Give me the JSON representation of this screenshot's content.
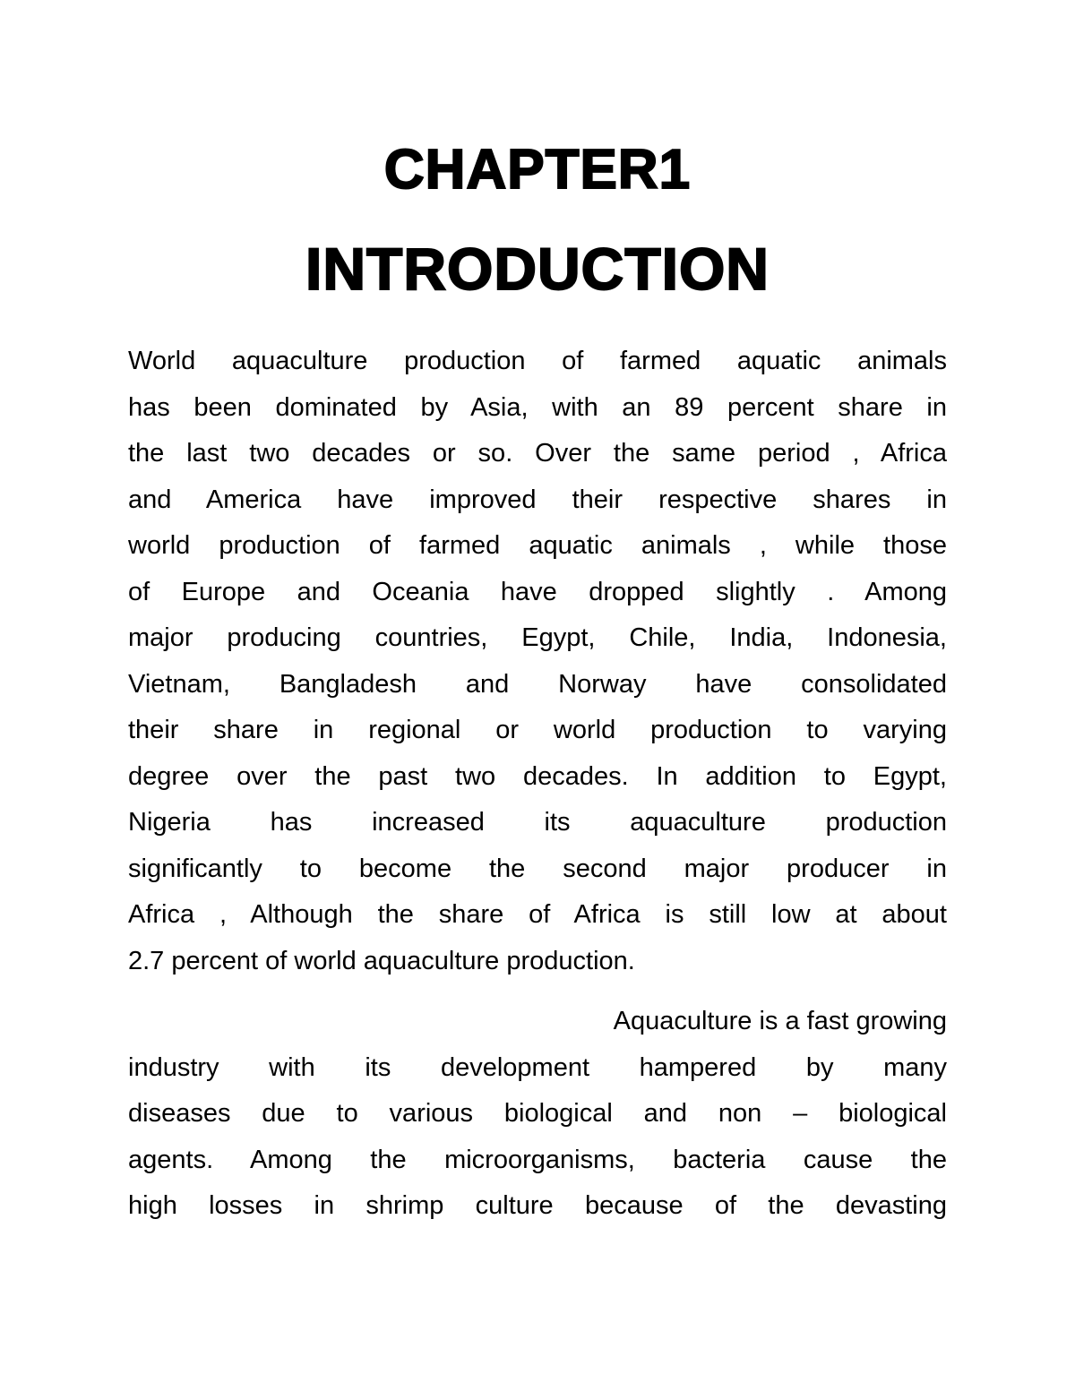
{
  "document": {
    "chapter_label": "CHAPTER1",
    "title": "INTRODUCTION",
    "paragraphs": [
      {
        "lines": [
          "World aquaculture production of farmed aquatic animals",
          "has been dominated by Asia, with an 89 percent share in",
          "the last two decades or so. Over the same period , Africa",
          "and America have improved their respective shares in",
          "world production of farmed aquatic animals , while those",
          "of Europe and Oceania have dropped slightly . Among",
          "major producing countries, Egypt, Chile, India, Indonesia,",
          "Vietnam, Bangladesh and Norway have consolidated",
          "their share in regional or world production to varying",
          "degree over the past two decades. In addition to Egypt,",
          "Nigeria has increased its aquaculture production",
          "significantly to become the second major producer in",
          "Africa , Although the share of Africa is still low at about",
          "2.7 percent of world aquaculture production."
        ]
      },
      {
        "lines": [
          "Aquaculture is a fast growing",
          "industry with its development hampered by many",
          "diseases due to various biological and non – biological",
          "agents. Among the microorganisms, bacteria cause the",
          "high losses in shrimp culture because of the devasting"
        ]
      }
    ]
  }
}
